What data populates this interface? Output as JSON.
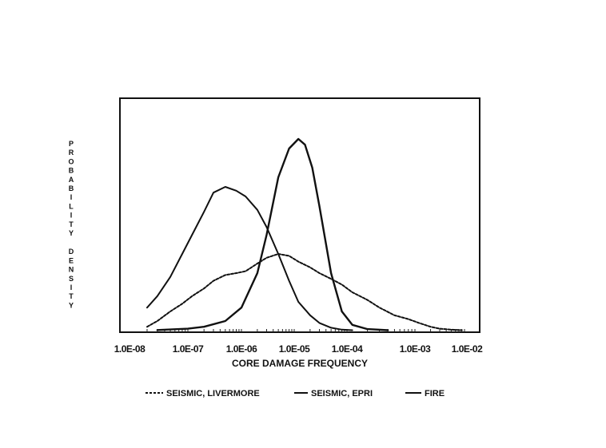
{
  "chart_data": {
    "type": "line",
    "title": "",
    "xlabel": "CORE DAMAGE FREQUENCY",
    "ylabel": "PROBABILITY DENSITY",
    "x_scale": "log",
    "xlim": [
      1e-08,
      0.01
    ],
    "ylim": [
      0,
      1
    ],
    "grid": false,
    "legend_position": "bottom",
    "tick_labels": [
      "1.0E-08",
      "1.0E-07",
      "1.0E-06",
      "1.0E-05",
      "1.0E-04",
      "1.0E-03",
      "1.0E-02"
    ],
    "tick_values": [
      1e-08,
      1e-07,
      1e-06,
      1e-05,
      0.0001,
      0.001,
      0.01
    ],
    "series": [
      {
        "name": "SEISMIC, LIVERMORE",
        "style": "dashed",
        "color": "#111111",
        "x": [
          2e-08,
          3e-08,
          5e-08,
          8e-08,
          1.2e-07,
          2e-07,
          3e-07,
          5e-07,
          8e-07,
          1.2e-06,
          2e-06,
          3e-06,
          5e-06,
          8e-06,
          1.2e-05,
          2e-05,
          3e-05,
          5e-05,
          8e-05,
          0.00012,
          0.0002,
          0.0003,
          0.0005,
          0.0008,
          0.0012,
          0.002,
          0.003,
          0.005,
          0.008
        ],
        "y": [
          0.02,
          0.05,
          0.1,
          0.14,
          0.18,
          0.22,
          0.26,
          0.29,
          0.3,
          0.31,
          0.35,
          0.38,
          0.4,
          0.39,
          0.36,
          0.33,
          0.3,
          0.27,
          0.24,
          0.2,
          0.16,
          0.12,
          0.08,
          0.06,
          0.04,
          0.02,
          0.01,
          0.005,
          0.002
        ]
      },
      {
        "name": "SEISMIC, EPRI",
        "style": "solid",
        "color": "#111111",
        "x": [
          2e-08,
          3e-08,
          5e-08,
          8e-08,
          1.2e-07,
          2e-07,
          3e-07,
          5e-07,
          8e-07,
          1.2e-06,
          2e-06,
          3e-06,
          5e-06,
          8e-06,
          1.2e-05,
          2e-05,
          3e-05,
          5e-05,
          8e-05,
          0.00012
        ],
        "y": [
          0.12,
          0.18,
          0.28,
          0.4,
          0.5,
          0.62,
          0.72,
          0.75,
          0.73,
          0.7,
          0.63,
          0.54,
          0.4,
          0.26,
          0.15,
          0.08,
          0.04,
          0.015,
          0.005,
          0.002
        ]
      },
      {
        "name": "FIRE",
        "style": "solid",
        "color": "#111111",
        "x": [
          3e-08,
          5e-08,
          1e-07,
          2e-07,
          5e-07,
          1e-06,
          2e-06,
          3e-06,
          5e-06,
          8e-06,
          1.2e-05,
          1.6e-05,
          2.2e-05,
          3e-05,
          5e-05,
          8e-05,
          0.00012,
          0.0002,
          0.0004
        ],
        "y": [
          0.003,
          0.006,
          0.01,
          0.02,
          0.05,
          0.12,
          0.3,
          0.5,
          0.8,
          0.95,
          1.0,
          0.97,
          0.85,
          0.65,
          0.3,
          0.1,
          0.03,
          0.008,
          0.002
        ]
      }
    ]
  }
}
